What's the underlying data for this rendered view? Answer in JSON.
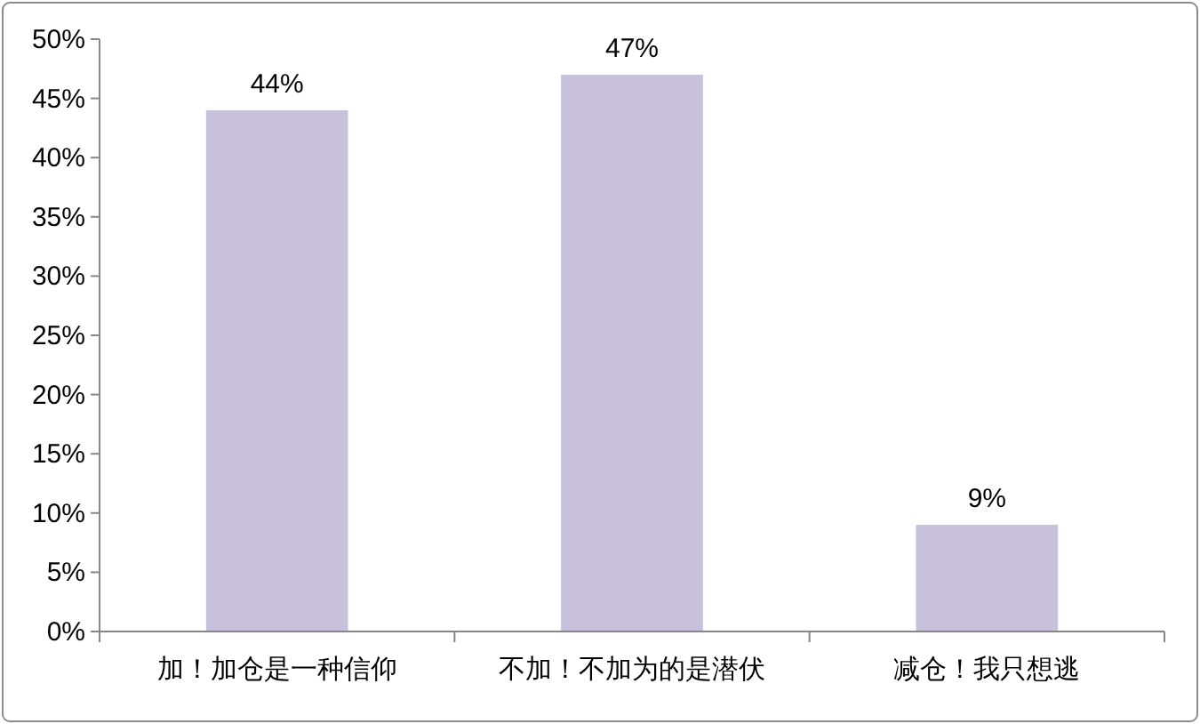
{
  "chart_data": {
    "type": "bar",
    "categories": [
      "加！加仓是一种信仰",
      "不加！不加为的是潜伏",
      "减仓！我只想逃"
    ],
    "values": [
      44,
      47,
      9
    ],
    "value_labels": [
      "44%",
      "47%",
      "9%"
    ],
    "color": "#c9c0dc",
    "ylim": [
      0,
      50
    ],
    "yticks": [
      {
        "value": 0,
        "label": "0%"
      },
      {
        "value": 5,
        "label": "5%"
      },
      {
        "value": 10,
        "label": "10%"
      },
      {
        "value": 15,
        "label": "15%"
      },
      {
        "value": 20,
        "label": "20%"
      },
      {
        "value": 25,
        "label": "25%"
      },
      {
        "value": 30,
        "label": "30%"
      },
      {
        "value": 35,
        "label": "35%"
      },
      {
        "value": 40,
        "label": "40%"
      },
      {
        "value": 45,
        "label": "45%"
      },
      {
        "value": 50,
        "label": "50%"
      }
    ],
    "grid": false
  }
}
